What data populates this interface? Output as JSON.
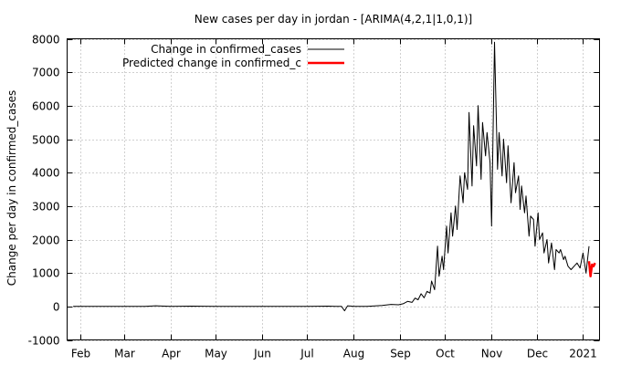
{
  "chart_data": {
    "type": "line",
    "title": "New cases per day in jordan -  [ARIMA(4,2,1|1,0,1)]",
    "xlabel": "",
    "ylabel": "Change per day in confirmed_cases",
    "ylim": [
      -1000,
      8000
    ],
    "xlim": [
      "2020-01-23",
      "2021-01-12"
    ],
    "y_ticks": [
      -1000,
      0,
      1000,
      2000,
      3000,
      4000,
      5000,
      6000,
      7000,
      8000
    ],
    "x_ticks": [
      {
        "label": "Feb",
        "date": "2020-02-01"
      },
      {
        "label": "Mar",
        "date": "2020-03-01"
      },
      {
        "label": "Apr",
        "date": "2020-04-01"
      },
      {
        "label": "May",
        "date": "2020-05-01"
      },
      {
        "label": "Jun",
        "date": "2020-06-01"
      },
      {
        "label": "Jul",
        "date": "2020-07-01"
      },
      {
        "label": "Aug",
        "date": "2020-08-01"
      },
      {
        "label": "Sep",
        "date": "2020-09-01"
      },
      {
        "label": "Oct",
        "date": "2020-10-01"
      },
      {
        "label": "Nov",
        "date": "2020-11-01"
      },
      {
        "label": "Dec",
        "date": "2020-12-01"
      },
      {
        "label": "2021",
        "date": "2021-01-01"
      }
    ],
    "grid": true,
    "legend_position": "top-left",
    "series": [
      {
        "name": "Change in confirmed_cases",
        "color": "#000000",
        "x": [
          "2020-01-27",
          "2020-03-01",
          "2020-03-15",
          "2020-03-22",
          "2020-04-01",
          "2020-04-15",
          "2020-05-01",
          "2020-06-01",
          "2020-07-01",
          "2020-07-15",
          "2020-07-20",
          "2020-07-24",
          "2020-07-26",
          "2020-07-28",
          "2020-08-01",
          "2020-08-10",
          "2020-08-20",
          "2020-08-26",
          "2020-08-31",
          "2020-09-03",
          "2020-09-06",
          "2020-09-09",
          "2020-09-11",
          "2020-09-13",
          "2020-09-15",
          "2020-09-17",
          "2020-09-19",
          "2020-09-21",
          "2020-09-22",
          "2020-09-24",
          "2020-09-26",
          "2020-09-27",
          "2020-09-29",
          "2020-09-30",
          "2020-10-02",
          "2020-10-03",
          "2020-10-05",
          "2020-10-06",
          "2020-10-08",
          "2020-10-09",
          "2020-10-11",
          "2020-10-13",
          "2020-10-14",
          "2020-10-16",
          "2020-10-17",
          "2020-10-19",
          "2020-10-20",
          "2020-10-22",
          "2020-10-23",
          "2020-10-25",
          "2020-10-26",
          "2020-10-28",
          "2020-10-29",
          "2020-10-31",
          "2020-11-01",
          "2020-11-03",
          "2020-11-05",
          "2020-11-06",
          "2020-11-08",
          "2020-11-09",
          "2020-11-11",
          "2020-11-12",
          "2020-11-14",
          "2020-11-16",
          "2020-11-17",
          "2020-11-19",
          "2020-11-20",
          "2020-11-21",
          "2020-11-23",
          "2020-11-24",
          "2020-11-26",
          "2020-11-27",
          "2020-11-29",
          "2020-11-30",
          "2020-12-02",
          "2020-12-03",
          "2020-12-05",
          "2020-12-06",
          "2020-12-08",
          "2020-12-09",
          "2020-12-11",
          "2020-12-13",
          "2020-12-14",
          "2020-12-16",
          "2020-12-17",
          "2020-12-19",
          "2020-12-20",
          "2020-12-22",
          "2020-12-24",
          "2020-12-26",
          "2020-12-28",
          "2020-12-30",
          "2021-01-01",
          "2021-01-03",
          "2021-01-05"
        ],
        "y": [
          0,
          0,
          0,
          20,
          0,
          10,
          0,
          0,
          0,
          10,
          0,
          0,
          -130,
          20,
          0,
          0,
          30,
          60,
          50,
          80,
          150,
          120,
          250,
          200,
          380,
          260,
          450,
          400,
          760,
          500,
          1800,
          900,
          1500,
          1100,
          2400,
          1600,
          2800,
          2100,
          3000,
          2300,
          3900,
          3100,
          4000,
          3500,
          5800,
          3600,
          5400,
          4200,
          6000,
          3800,
          5500,
          4500,
          5200,
          4300,
          2400,
          7900,
          4100,
          5200,
          3900,
          5000,
          3700,
          4800,
          3100,
          4300,
          3400,
          3900,
          2900,
          3600,
          2800,
          3300,
          2100,
          2700,
          2600,
          1800,
          2800,
          2000,
          2200,
          1600,
          2000,
          1300,
          1900,
          1100,
          1700,
          1600,
          1700,
          1400,
          1500,
          1200,
          1100,
          1200,
          1300,
          1150,
          1600,
          1000,
          1800
        ]
      },
      {
        "name": "Predicted change in confirmed_c",
        "color": "#ff0000",
        "x": [
          "2021-01-05",
          "2021-01-06",
          "2021-01-07",
          "2021-01-08",
          "2021-01-09"
        ],
        "y": [
          1350,
          900,
          1250,
          1200,
          1300
        ]
      }
    ]
  }
}
